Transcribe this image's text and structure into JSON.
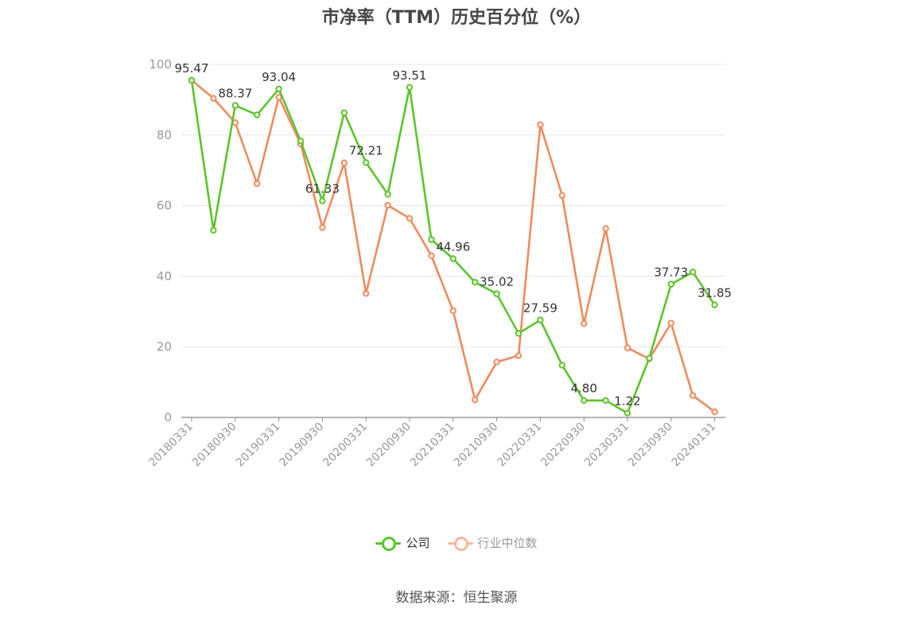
{
  "title": "市净率（TTM）历史百分位（%）",
  "source_label": "数据来源：恒生聚源",
  "colors": {
    "company": "#5cc42b",
    "industry": "#f08a5d",
    "grid": "#e6e6e6",
    "axis": "#999999",
    "label": "#333333"
  },
  "chart_data": {
    "type": "line",
    "title": "市净率（TTM）历史百分位（%）",
    "ylim": [
      0,
      100
    ],
    "yticks": [
      0,
      20,
      40,
      60,
      80,
      100
    ],
    "x_tick_labels": [
      "20180331",
      "20180930",
      "20190331",
      "20190930",
      "20200331",
      "20200930",
      "20210331",
      "20210930",
      "20220331",
      "20220930",
      "20230331",
      "20230930",
      "20240131"
    ],
    "x_tick_positions": [
      0,
      2,
      4,
      6,
      8,
      10,
      12,
      14,
      16,
      18,
      20,
      22,
      24
    ],
    "grid": true,
    "legend_position": "bottom-center",
    "series": [
      {
        "name": "公司",
        "values": [
          95.47,
          53.0,
          88.37,
          85.7,
          93.04,
          78.3,
          61.33,
          86.3,
          72.21,
          63.2,
          93.51,
          50.4,
          44.96,
          38.3,
          35.02,
          23.8,
          27.59,
          14.8,
          4.8,
          4.8,
          1.22,
          16.8,
          37.73,
          41.2,
          31.85
        ],
        "labeled_points": [
          0,
          2,
          4,
          6,
          8,
          10,
          12,
          14,
          16,
          18,
          20,
          22,
          24
        ]
      },
      {
        "name": "行业中位数",
        "values": [
          95.5,
          90.4,
          83.5,
          66.2,
          90.7,
          77.5,
          53.8,
          72.1,
          35.1,
          60.1,
          56.4,
          45.8,
          30.2,
          5.0,
          15.7,
          17.5,
          82.9,
          62.9,
          26.6,
          53.5,
          19.7,
          16.6,
          26.7,
          6.2,
          1.6
        ]
      }
    ]
  }
}
